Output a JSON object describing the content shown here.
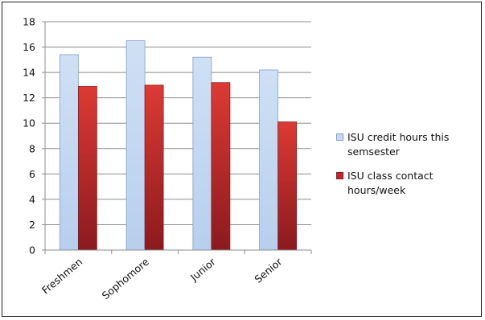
{
  "chart_data": {
    "type": "bar",
    "title": "",
    "xlabel": "",
    "ylabel": "",
    "categories": [
      "Freshmen",
      "Sophomore",
      "Junior",
      "Senior"
    ],
    "ylim": [
      0,
      18
    ],
    "yticks": [
      0,
      2,
      4,
      6,
      8,
      10,
      12,
      14,
      16,
      18
    ],
    "grid": true,
    "legend_position": "right",
    "series": [
      {
        "name": "ISU credit hours this semsester",
        "values": [
          15.4,
          16.5,
          15.2,
          14.2
        ],
        "fill": "#c6d9f1",
        "stroke": "#7f9fcf"
      },
      {
        "name": "ISU class contact hours/week",
        "values": [
          12.9,
          13.0,
          13.2,
          10.1
        ],
        "fill": "#c0272d",
        "stroke": "#8e1b1f"
      }
    ]
  }
}
